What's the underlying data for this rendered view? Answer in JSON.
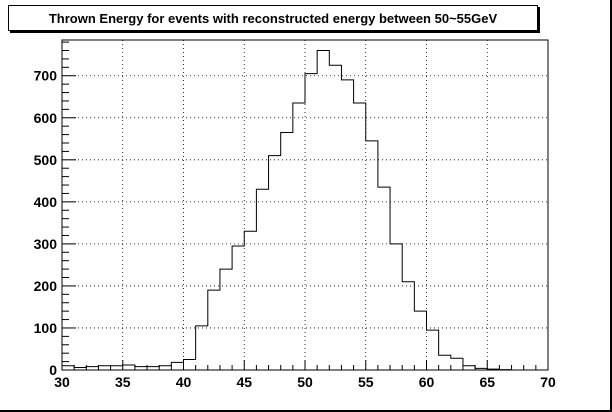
{
  "chart_data": {
    "type": "bar",
    "title": "Thrown Energy for events with reconstructed energy between 50~55GeV",
    "xlabel": "",
    "ylabel": "",
    "xlim": [
      30,
      70
    ],
    "ylim": [
      0,
      785
    ],
    "grid": true,
    "bin_width": 1,
    "bin_edges_start": [
      30,
      31,
      32,
      33,
      34,
      35,
      36,
      37,
      38,
      39,
      40,
      41,
      42,
      43,
      44,
      45,
      46,
      47,
      48,
      49,
      50,
      51,
      52,
      53,
      54,
      55,
      56,
      57,
      58,
      59,
      60,
      61,
      62,
      63,
      64,
      65,
      66,
      67,
      68,
      69
    ],
    "values": [
      10,
      6,
      8,
      10,
      10,
      12,
      8,
      8,
      10,
      18,
      25,
      105,
      190,
      240,
      295,
      330,
      430,
      510,
      565,
      635,
      705,
      760,
      725,
      690,
      635,
      545,
      435,
      300,
      210,
      140,
      95,
      35,
      28,
      10,
      4,
      2,
      1,
      0,
      0,
      0
    ],
    "x_ticks": [
      "30",
      "35",
      "40",
      "45",
      "50",
      "55",
      "60",
      "65",
      "70"
    ],
    "y_ticks": [
      "0",
      "100",
      "200",
      "300",
      "400",
      "500",
      "600",
      "700"
    ]
  }
}
